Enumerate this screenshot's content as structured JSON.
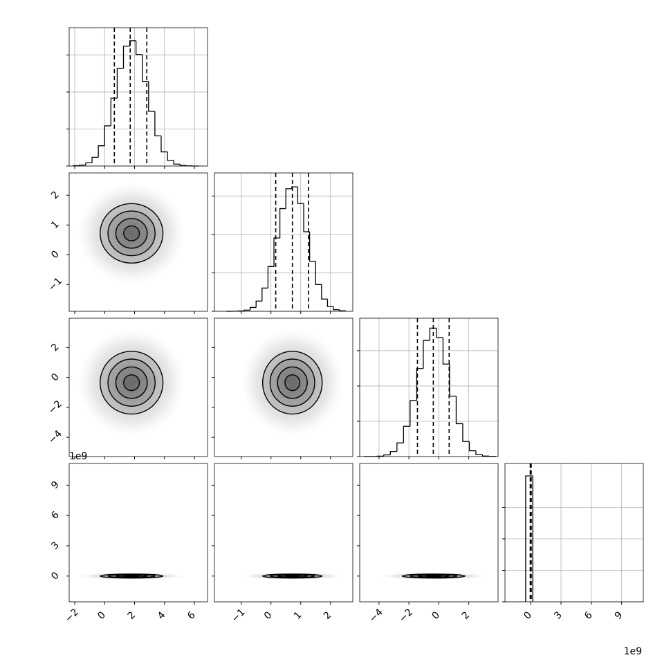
{
  "chart_data": {
    "type": "corner",
    "offset_label": "1e9",
    "grid": true,
    "color": "#000000",
    "contour_levels": [
      0.5,
      1,
      1.5,
      2
    ],
    "variables": [
      {
        "lim": [
          -2.37,
          6.88
        ],
        "ticks": [
          {
            "value": -2,
            "label": "−2"
          },
          0,
          2,
          4,
          6
        ]
      },
      {
        "lim": [
          -1.9,
          2.75
        ],
        "ticks": [
          {
            "value": -1,
            "label": "−1"
          },
          0,
          1,
          2
        ]
      },
      {
        "lim": [
          -5.29,
          3.96
        ],
        "ticks": [
          {
            "value": -4,
            "label": "−4"
          },
          {
            "value": -2,
            "label": "−2"
          },
          0,
          2
        ]
      },
      {
        "lim": [
          -2.55,
          11.15
        ],
        "ticks": [
          0,
          3,
          6,
          9
        ]
      }
    ],
    "histograms": [
      {
        "bins": [
          -2.1,
          -1.68,
          -1.26,
          -0.84,
          -0.42,
          0,
          0.42,
          0.84,
          1.26,
          1.68,
          2.1,
          2.52,
          2.94,
          3.36,
          3.78,
          4.2,
          4.62,
          5.04,
          5.46,
          5.88,
          6.3
        ],
        "counts": [
          4,
          13,
          43,
          118,
          274,
          543,
          916,
          1320,
          1620,
          1693,
          1507,
          1144,
          739,
          408,
          191,
          76,
          26,
          8,
          2,
          0
        ],
        "ylim": [
          0,
          1870
        ],
        "yticks": [
          0,
          500,
          1000,
          1500
        ],
        "quantiles": [
          0.65,
          1.71,
          2.82
        ]
      },
      {
        "bins": [
          -1.5,
          -1.3,
          -1.1,
          -0.9,
          -0.7,
          -0.5,
          -0.3,
          -0.1,
          0.1,
          0.3,
          0.5,
          0.7,
          0.9,
          1.1,
          1.3,
          1.5,
          1.7,
          1.9,
          2.1,
          2.3,
          2.5
        ],
        "counts": [
          0,
          1,
          4,
          16,
          50,
          133,
          302,
          582,
          954,
          1336,
          1594,
          1619,
          1402,
          1035,
          650,
          348,
          159,
          62,
          21,
          6
        ],
        "ylim": [
          0,
          1800
        ],
        "yticks": [
          0,
          500,
          1000,
          1500
        ],
        "quantiles": [
          0.16,
          0.72,
          1.26
        ]
      },
      {
        "bins": [
          -5,
          -4.56,
          -4.12,
          -3.68,
          -3.24,
          -2.8,
          -2.36,
          -1.92,
          -1.48,
          -1.04,
          -0.6,
          -0.16,
          0.28,
          0.72,
          1.16,
          1.6,
          2.04,
          2.48,
          2.92,
          3.36,
          3.8
        ],
        "counts": [
          0,
          1,
          6,
          23,
          72,
          193,
          429,
          792,
          1247,
          1645,
          1819,
          1687,
          1310,
          855,
          466,
          213,
          82,
          27,
          7,
          2
        ],
        "ylim": [
          0,
          1960
        ],
        "yticks": [
          0,
          500,
          1000,
          1500
        ],
        "quantiles": [
          -1.43,
          -0.37,
          0.69
        ]
      },
      {
        "bins": [
          -0.5,
          0.2
        ],
        "counts": [
          10000
        ],
        "ylim": [
          0,
          10990
        ],
        "yticks": [
          0,
          2500,
          5000,
          7500
        ],
        "quantiles": [
          -0.05,
          0,
          0.05
        ]
      }
    ],
    "pairs": [
      {
        "x": 0,
        "y": 1,
        "center": [
          1.8,
          0.72
        ],
        "spread": [
          1.05,
          0.5
        ]
      },
      {
        "x": 0,
        "y": 2,
        "center": [
          1.8,
          -0.35
        ],
        "spread": [
          1.05,
          1.05
        ]
      },
      {
        "x": 1,
        "y": 2,
        "center": [
          0.72,
          -0.35
        ],
        "spread": [
          0.5,
          1.05
        ]
      },
      {
        "x": 0,
        "y": 3,
        "center": [
          1.8,
          0
        ],
        "spread": [
          1.05,
          0.1
        ]
      },
      {
        "x": 1,
        "y": 3,
        "center": [
          0.72,
          0
        ],
        "spread": [
          0.5,
          0.1
        ]
      },
      {
        "x": 2,
        "y": 3,
        "center": [
          -0.35,
          0
        ],
        "spread": [
          1.05,
          0.1
        ]
      }
    ]
  }
}
